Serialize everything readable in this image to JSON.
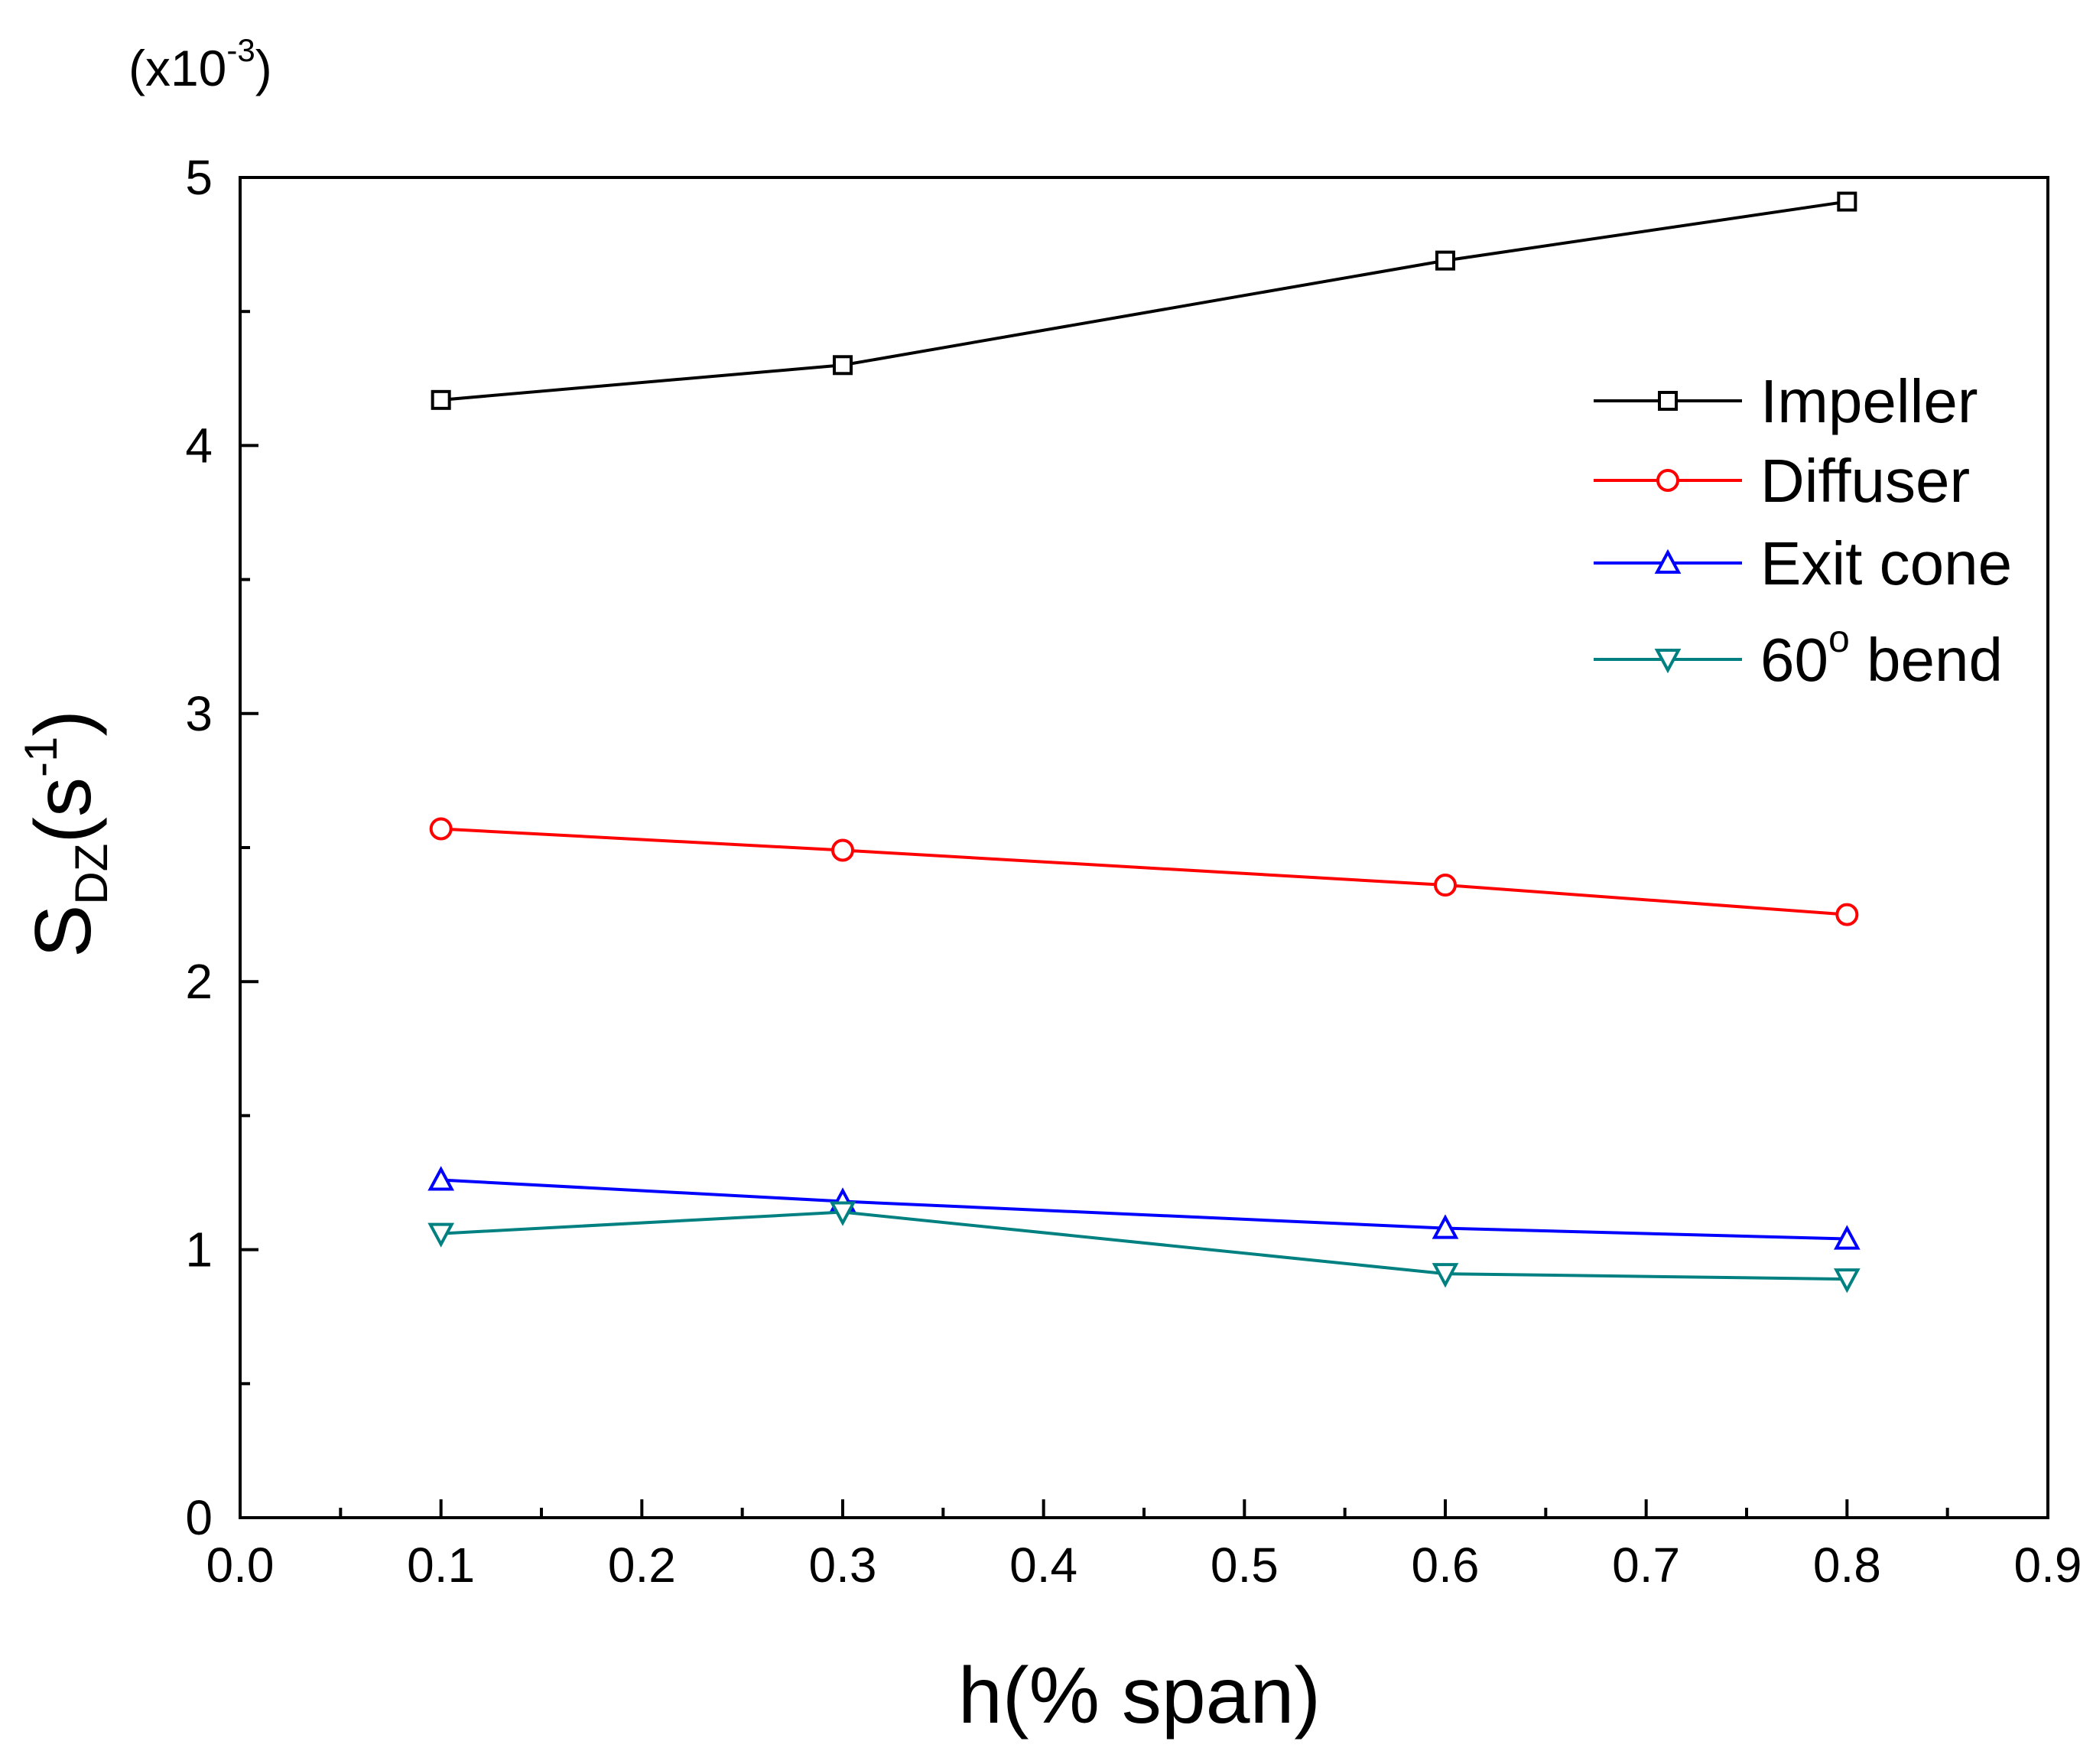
{
  "chart_data": {
    "type": "line",
    "title": "",
    "xlabel": "h(% span)",
    "ylabel": {
      "main": "S",
      "sub": "DZ",
      "unit_open": "(s",
      "unit_sup": "-1",
      "unit_close": ")"
    },
    "y_scale_note": {
      "open": "(x10",
      "sup": "-3",
      "close": ")"
    },
    "xlim": [
      0.0,
      0.9
    ],
    "ylim": [
      0,
      5
    ],
    "x_ticks": [
      "0.0",
      "0.1",
      "0.2",
      "0.3",
      "0.4",
      "0.5",
      "0.6",
      "0.7",
      "0.8",
      "0.9"
    ],
    "y_ticks": [
      "0",
      "1",
      "2",
      "3",
      "4",
      "5"
    ],
    "x_tick_values": [
      0.0,
      0.1,
      0.2,
      0.3,
      0.4,
      0.5,
      0.6,
      0.7,
      0.8,
      0.9
    ],
    "y_tick_values": [
      0,
      1,
      2,
      3,
      4,
      5
    ],
    "grid": false,
    "legend_position": "top-right",
    "x": [
      0.1,
      0.3,
      0.6,
      0.8
    ],
    "series": [
      {
        "name": "Impeller",
        "color": "#000000",
        "marker": "square",
        "values": [
          4.17,
          4.3,
          4.69,
          4.91
        ]
      },
      {
        "name": "Diffuser",
        "color": "#ff0000",
        "marker": "circle",
        "values": [
          2.57,
          2.49,
          2.36,
          2.25
        ]
      },
      {
        "name": "Exit cone",
        "color": "#0000ff",
        "marker": "triangle-up",
        "values": [
          1.26,
          1.18,
          1.08,
          1.04
        ]
      },
      {
        "name": "60° bend",
        "name_parts": {
          "pre": "60",
          "sup": "o",
          "post": " bend"
        },
        "color": "#008080",
        "marker": "triangle-down",
        "values": [
          1.06,
          1.14,
          0.91,
          0.89
        ]
      }
    ]
  }
}
